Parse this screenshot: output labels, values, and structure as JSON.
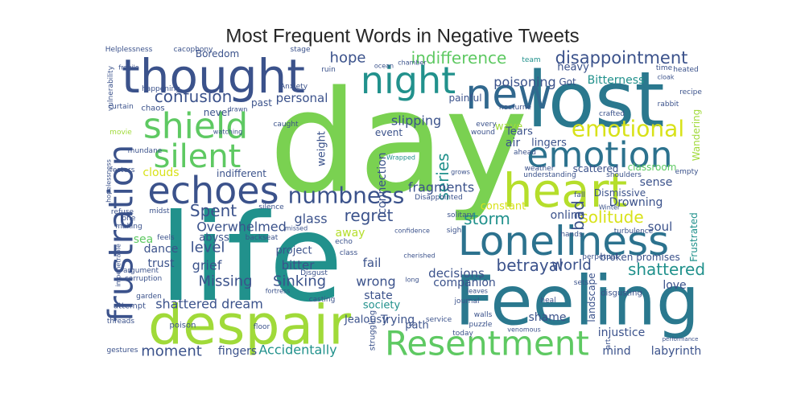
{
  "chart_data": {
    "type": "wordcloud",
    "title": "Most Frequent Words in Negative Tweets",
    "words": [
      {
        "text": "day",
        "color": "#7ad151"
      },
      {
        "text": "life",
        "color": "#21918c"
      },
      {
        "text": "lost",
        "color": "#2a788e"
      },
      {
        "text": "Feeling",
        "color": "#2a788e"
      },
      {
        "text": "despair",
        "color": "#a0da39"
      },
      {
        "text": "thought",
        "color": "#3b528b"
      },
      {
        "text": "new",
        "color": "#31688e"
      },
      {
        "text": "night",
        "color": "#21918c"
      },
      {
        "text": "heart",
        "color": "#b5de2b"
      },
      {
        "text": "Loneliness",
        "color": "#2c728e"
      },
      {
        "text": "emotion",
        "color": "#2c728e"
      },
      {
        "text": "Resentment",
        "color": "#5ec962"
      },
      {
        "text": "frustration",
        "color": "#3b528b"
      },
      {
        "text": "shield",
        "color": "#5ec962"
      },
      {
        "text": "silent",
        "color": "#5ec962"
      },
      {
        "text": "echoes",
        "color": "#3b528b"
      },
      {
        "text": "numbness",
        "color": "#3b528b"
      },
      {
        "text": "emotional",
        "color": "#d8e219"
      },
      {
        "text": "disappointment",
        "color": "#3b528b"
      },
      {
        "text": "indifference",
        "color": "#5ec962"
      },
      {
        "text": "hope",
        "color": "#3b528b"
      },
      {
        "text": "confusion",
        "color": "#3b528b"
      },
      {
        "text": "Bitterness",
        "color": "#21918c"
      },
      {
        "text": "poisoning",
        "color": "#3b528b"
      },
      {
        "text": "personal",
        "color": "#3b528b"
      },
      {
        "text": "past",
        "color": "#3b528b"
      },
      {
        "text": "painful",
        "color": "#3b528b"
      },
      {
        "text": "slipping",
        "color": "#3b528b"
      },
      {
        "text": "wave",
        "color": "#a0da39"
      },
      {
        "text": "lingers",
        "color": "#3b528b"
      },
      {
        "text": "Tears",
        "color": "#3b528b"
      },
      {
        "text": "air",
        "color": "#3b528b"
      },
      {
        "text": "event",
        "color": "#3b528b"
      },
      {
        "text": "series",
        "color": "#21918c"
      },
      {
        "text": "connection",
        "color": "#3b528b"
      },
      {
        "text": "weight",
        "color": "#3b528b"
      },
      {
        "text": "fragments",
        "color": "#3b528b"
      },
      {
        "text": "Spent",
        "color": "#3b528b"
      },
      {
        "text": "Overwhelmed",
        "color": "#3b528b"
      },
      {
        "text": "regret",
        "color": "#3b528b"
      },
      {
        "text": "storm",
        "color": "#21918c"
      },
      {
        "text": "solitude",
        "color": "#d8e219"
      },
      {
        "text": "Drowning",
        "color": "#3b528b"
      },
      {
        "text": "bad",
        "color": "#3b528b"
      },
      {
        "text": "online",
        "color": "#3b528b"
      },
      {
        "text": "glass",
        "color": "#3b528b"
      },
      {
        "text": "level",
        "color": "#3b528b"
      },
      {
        "text": "grief",
        "color": "#3b528b"
      },
      {
        "text": "trust",
        "color": "#3b528b"
      },
      {
        "text": "dance",
        "color": "#3b528b"
      },
      {
        "text": "sea",
        "color": "#5ec962"
      },
      {
        "text": "abyss",
        "color": "#3b528b"
      },
      {
        "text": "project",
        "color": "#3b528b"
      },
      {
        "text": "bitter",
        "color": "#3b528b"
      },
      {
        "text": "Missing",
        "color": "#3b528b"
      },
      {
        "text": "Sinking",
        "color": "#3b528b"
      },
      {
        "text": "betrayal",
        "color": "#3b528b"
      },
      {
        "text": "world",
        "color": "#3b528b"
      },
      {
        "text": "shattered",
        "color": "#21918c"
      },
      {
        "text": "love",
        "color": "#3b528b"
      },
      {
        "text": "fail",
        "color": "#3b528b"
      },
      {
        "text": "wrong",
        "color": "#3b528b"
      },
      {
        "text": "decisions",
        "color": "#3b528b"
      },
      {
        "text": "companion",
        "color": "#3b528b"
      },
      {
        "text": "state",
        "color": "#3b528b"
      },
      {
        "text": "shattered dream",
        "color": "#3b528b"
      },
      {
        "text": "society",
        "color": "#21918c"
      },
      {
        "text": "Jealousy",
        "color": "#3b528b"
      },
      {
        "text": "Trying",
        "color": "#3b528b"
      },
      {
        "text": "path",
        "color": "#3b528b"
      },
      {
        "text": "shame",
        "color": "#3b528b"
      },
      {
        "text": "injustice",
        "color": "#3b528b"
      },
      {
        "text": "labyrinth",
        "color": "#3b528b"
      },
      {
        "text": "mind",
        "color": "#3b528b"
      },
      {
        "text": "moment",
        "color": "#3b528b"
      },
      {
        "text": "fingers",
        "color": "#3b528b"
      },
      {
        "text": "Accidentally",
        "color": "#21918c"
      },
      {
        "text": "Boredom",
        "color": "#3b528b"
      },
      {
        "text": "indifferent",
        "color": "#3b528b"
      },
      {
        "text": "clouds",
        "color": "#d8e219"
      },
      {
        "text": "sense",
        "color": "#3b528b"
      },
      {
        "text": "Dismissive",
        "color": "#3b528b"
      },
      {
        "text": "Frustrated",
        "color": "#21918c"
      },
      {
        "text": "soul",
        "color": "#3b528b"
      },
      {
        "text": "Wandering",
        "color": "#a0da39"
      },
      {
        "text": "classroom",
        "color": "#5ec962"
      },
      {
        "text": "scattered",
        "color": "#3b528b"
      },
      {
        "text": "constant",
        "color": "#d8e219"
      },
      {
        "text": "away",
        "color": "#b5de2b"
      },
      {
        "text": "heavy",
        "color": "#3b528b"
      },
      {
        "text": "Got",
        "color": "#3b528b"
      },
      {
        "text": "never",
        "color": "#3b528b"
      },
      {
        "text": "chaos",
        "color": "#3b528b"
      },
      {
        "text": "Helplessness",
        "color": "#3b528b"
      },
      {
        "text": "cacophony",
        "color": "#3b528b"
      },
      {
        "text": "stage",
        "color": "#3b528b"
      },
      {
        "text": "team",
        "color": "#21918c"
      },
      {
        "text": "time",
        "color": "#3b528b"
      },
      {
        "text": "heated",
        "color": "#3b528b"
      },
      {
        "text": "recipe",
        "color": "#3b528b"
      },
      {
        "text": "Anxiety",
        "color": "#3b528b"
      },
      {
        "text": "Disappointed",
        "color": "#3b528b"
      },
      {
        "text": "Wrapped",
        "color": "#21918c"
      },
      {
        "text": "every",
        "color": "#3b528b"
      },
      {
        "text": "wound",
        "color": "#3b528b"
      },
      {
        "text": "broken promises",
        "color": "#3b528b"
      },
      {
        "text": "perpetual",
        "color": "#3b528b"
      },
      {
        "text": "empty",
        "color": "#3b528b"
      },
      {
        "text": "fall",
        "color": "#3b528b"
      },
      {
        "text": "sets",
        "color": "#3b528b"
      },
      {
        "text": "disgusting",
        "color": "#3b528b"
      },
      {
        "text": "puzzle",
        "color": "#3b528b"
      },
      {
        "text": "today",
        "color": "#3b528b"
      },
      {
        "text": "journal",
        "color": "#3b528b"
      },
      {
        "text": "walls",
        "color": "#3b528b"
      },
      {
        "text": "service",
        "color": "#3b528b"
      },
      {
        "text": "poison",
        "color": "#3b528b"
      },
      {
        "text": "attempt",
        "color": "#3b528b"
      },
      {
        "text": "gestures",
        "color": "#3b528b"
      },
      {
        "text": "threads",
        "color": "#3b528b"
      },
      {
        "text": "corruption",
        "color": "#3b528b"
      },
      {
        "text": "argument",
        "color": "#3b528b"
      },
      {
        "text": "making",
        "color": "#3b528b"
      },
      {
        "text": "feels",
        "color": "#3b528b"
      },
      {
        "text": "refuse",
        "color": "#3b528b"
      },
      {
        "text": "midst",
        "color": "#3b528b"
      },
      {
        "text": "one",
        "color": "#3b528b"
      },
      {
        "text": "garden",
        "color": "#3b528b"
      },
      {
        "text": "curtain",
        "color": "#3b528b"
      },
      {
        "text": "movie",
        "color": "#a0da39"
      },
      {
        "text": "mundane",
        "color": "#3b528b"
      },
      {
        "text": "festers",
        "color": "#3b528b"
      },
      {
        "text": "happening",
        "color": "#3b528b"
      },
      {
        "text": "drawn",
        "color": "#3b528b"
      },
      {
        "text": "watching",
        "color": "#3b528b"
      },
      {
        "text": "caught",
        "color": "#3b528b"
      },
      {
        "text": "silence",
        "color": "#3b528b"
      },
      {
        "text": "missed",
        "color": "#3b528b"
      },
      {
        "text": "backseat",
        "color": "#3b528b"
      },
      {
        "text": "echo",
        "color": "#3b528b"
      },
      {
        "text": "class",
        "color": "#3b528b"
      },
      {
        "text": "Disgust",
        "color": "#3b528b"
      },
      {
        "text": "casting",
        "color": "#3b528b"
      },
      {
        "text": "floor",
        "color": "#3b528b"
      },
      {
        "text": "sigh",
        "color": "#3b528b"
      },
      {
        "text": "confidence",
        "color": "#3b528b"
      },
      {
        "text": "cherished",
        "color": "#3b528b"
      },
      {
        "text": "long",
        "color": "#3b528b"
      },
      {
        "text": "leaves",
        "color": "#3b528b"
      },
      {
        "text": "solitary",
        "color": "#3b528b"
      },
      {
        "text": "heal",
        "color": "#3b528b"
      },
      {
        "text": "hands",
        "color": "#3b528b"
      },
      {
        "text": "turbulence",
        "color": "#3b528b"
      },
      {
        "text": "Winter",
        "color": "#3b528b"
      },
      {
        "text": "weather",
        "color": "#3b528b"
      },
      {
        "text": "ahead",
        "color": "#3b528b"
      },
      {
        "text": "understanding",
        "color": "#3b528b"
      },
      {
        "text": "shoulders",
        "color": "#3b528b"
      },
      {
        "text": "grows",
        "color": "#3b528b"
      },
      {
        "text": "ocean",
        "color": "#3b528b"
      },
      {
        "text": "chamber",
        "color": "#3b528b"
      },
      {
        "text": "ruin",
        "color": "#3b528b"
      },
      {
        "text": "nocturne",
        "color": "#3b528b"
      },
      {
        "text": "crafted",
        "color": "#3b528b"
      },
      {
        "text": "rabbit",
        "color": "#3b528b"
      },
      {
        "text": "cloak",
        "color": "#3b528b"
      },
      {
        "text": "fortress",
        "color": "#3b528b"
      },
      {
        "text": "art",
        "color": "#3b528b"
      },
      {
        "text": "landscape",
        "color": "#3b528b"
      },
      {
        "text": "struggling",
        "color": "#3b528b"
      },
      {
        "text": "venomous",
        "color": "#3b528b"
      },
      {
        "text": "performance",
        "color": "#3b528b"
      },
      {
        "text": "vulnerability",
        "color": "#3b528b"
      },
      {
        "text": "impenetrable",
        "color": "#3b528b"
      },
      {
        "text": "hopelessness",
        "color": "#3b528b"
      },
      {
        "text": "fragile",
        "color": "#3b528b"
      }
    ]
  }
}
